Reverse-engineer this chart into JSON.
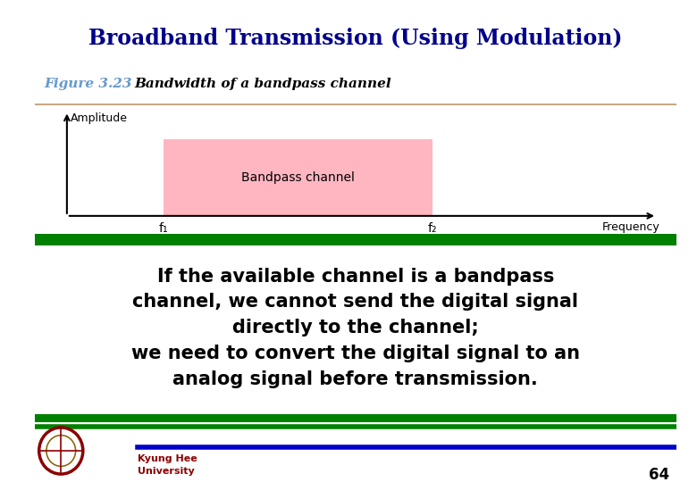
{
  "title": "Broadband Transmission (Using Modulation)",
  "title_bg": "#f2b8c6",
  "title_color": "#00008B",
  "figure_label": "Figure 3.23",
  "figure_label_color": "#6699CC",
  "figure_subtitle": "Bandwidth of a bandpass channel",
  "figure_subtitle_color": "#000000",
  "bg_color": "#ffffff",
  "bandpass_fill": "#FFB6C1",
  "bandpass_label": "Bandpass channel",
  "f1_label": "f₁",
  "f2_label": "f₂",
  "amplitude_label": "Amplitude",
  "frequency_label": "Frequency",
  "info_bg": "#66ff00",
  "info_border_top": "#008000",
  "info_border_bottom": "#008000",
  "info_text": "If the available channel is a bandpass\nchannel, we cannot send the digital signal\ndirectly to the channel;\nwe need to convert the digital signal to an\nanalog signal before transmission.",
  "info_text_color": "#000000",
  "footer_line_color": "#0000cc",
  "footer_text_color": "#8B0000",
  "page_number": "64",
  "separator_color": "#C8A882",
  "green_color": "#008000"
}
